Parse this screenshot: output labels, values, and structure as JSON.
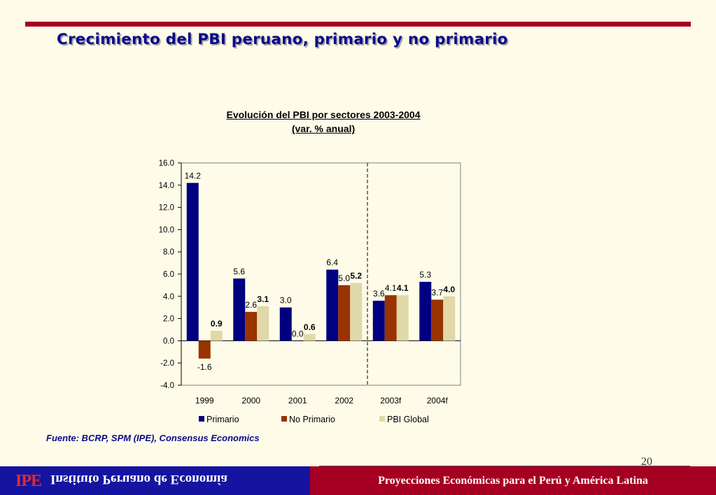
{
  "slide": {
    "title": "Crecimiento del PBI peruano, primario y no primario",
    "source": "Fuente: BCRP, SPM (IPE), Consensus Economics",
    "page_number": "20"
  },
  "footer": {
    "logo": "IPE",
    "institute_name": "Instituto Peruano de Economía",
    "caption": "Proyecciones Económicas para el Perú y América Latina"
  },
  "colors": {
    "primario": "#000080",
    "no_primario": "#993300",
    "pbi_global": "#E0D8A8",
    "title": "#0A0A8C",
    "footer_blue": "#1414A0",
    "footer_red": "#A50021"
  },
  "chart_data": {
    "type": "bar",
    "title": "Evolución del PBI por sectores 2003-2004",
    "subtitle": "(var. % anual)",
    "categories": [
      "1999",
      "2000",
      "2001",
      "2002",
      "2003f",
      "2004f"
    ],
    "series": [
      {
        "name": "Primario",
        "values": [
          14.2,
          5.6,
          3.0,
          6.4,
          3.6,
          5.3
        ],
        "labels": [
          "14.2",
          "5.6",
          "3.0",
          "6.4",
          "3.6",
          "5.3"
        ]
      },
      {
        "name": "No Primario",
        "values": [
          -1.6,
          2.6,
          0.0,
          5.0,
          4.1,
          3.7
        ],
        "labels": [
          "-1.6",
          "2.6",
          "0.0",
          "5.0",
          "4.1",
          "3.7"
        ]
      },
      {
        "name": "PBI Global",
        "values": [
          0.9,
          3.1,
          0.6,
          5.2,
          4.1,
          4.0
        ],
        "labels": [
          "0.9",
          "3.1",
          "0.6",
          "5.2",
          "4.1",
          "4.0"
        ]
      }
    ],
    "ylim": [
      -4.0,
      16.0
    ],
    "yticks": [
      "-4.0",
      "-2.0",
      "0.0",
      "2.0",
      "4.0",
      "6.0",
      "8.0",
      "10.0",
      "12.0",
      "14.0",
      "16.0"
    ],
    "forecast_divider_after": "2002",
    "legend_position": "bottom",
    "grid": false
  }
}
